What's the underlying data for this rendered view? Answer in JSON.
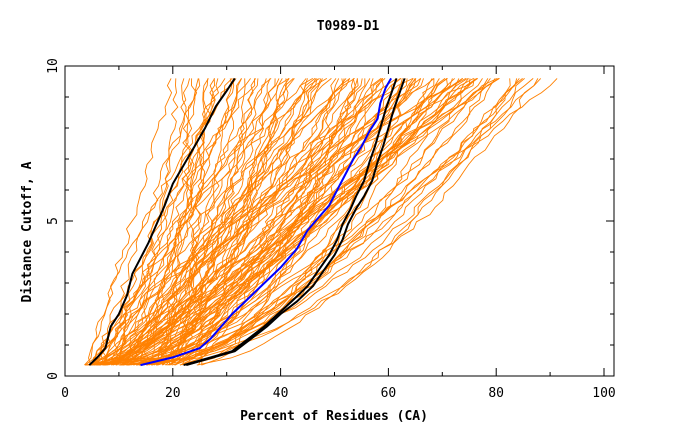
{
  "chart_data": {
    "type": "line",
    "title": "T0989-D1",
    "xlabel": "Percent of Residues (CA)",
    "ylabel": "Distance Cutoff, A",
    "xlim": [
      0,
      102
    ],
    "ylim": [
      0,
      10
    ],
    "xticks": [
      0,
      20,
      40,
      60,
      80,
      100
    ],
    "yticks": [
      0,
      5,
      10
    ],
    "grid": false,
    "colors": {
      "background": "#cc7a1a",
      "highlight_black": "#000000",
      "highlight_blue": "#0000ff"
    },
    "background_series": {
      "note_color": "#ff8000",
      "count": 120,
      "start_range": [
        4,
        26
      ],
      "end_range": [
        20,
        92
      ]
    },
    "series": [
      {
        "color": "#000000",
        "points": [
          [
            4.5,
            0.35
          ],
          [
            6,
            0.6
          ],
          [
            7.5,
            0.9
          ],
          [
            8.5,
            1.6
          ],
          [
            10,
            2.0
          ],
          [
            11.5,
            2.6
          ],
          [
            12.5,
            3.3
          ],
          [
            14,
            3.8
          ],
          [
            15.5,
            4.3
          ],
          [
            17,
            4.9
          ],
          [
            18.5,
            5.5
          ],
          [
            20,
            6.2
          ],
          [
            22,
            6.8
          ],
          [
            24,
            7.4
          ],
          [
            26,
            8.0
          ],
          [
            28,
            8.7
          ],
          [
            30,
            9.2
          ],
          [
            31.5,
            9.6
          ]
        ]
      },
      {
        "color": "#0000ff",
        "points": [
          [
            14,
            0.35
          ],
          [
            20,
            0.6
          ],
          [
            25,
            0.9
          ],
          [
            27,
            1.2
          ],
          [
            29,
            1.6
          ],
          [
            31,
            2.0
          ],
          [
            34,
            2.5
          ],
          [
            37,
            3.0
          ],
          [
            40,
            3.5
          ],
          [
            43,
            4.1
          ],
          [
            45,
            4.7
          ],
          [
            47,
            5.1
          ],
          [
            49,
            5.5
          ],
          [
            50.5,
            6.0
          ],
          [
            52,
            6.5
          ],
          [
            53.5,
            7.0
          ],
          [
            55,
            7.4
          ],
          [
            56.5,
            7.9
          ],
          [
            58,
            8.3
          ],
          [
            58.5,
            8.8
          ],
          [
            59.5,
            9.3
          ],
          [
            60.5,
            9.6
          ]
        ]
      },
      {
        "color": "#000000",
        "points": [
          [
            22,
            0.35
          ],
          [
            27,
            0.6
          ],
          [
            31,
            0.8
          ],
          [
            34,
            1.2
          ],
          [
            37,
            1.6
          ],
          [
            39.5,
            2.0
          ],
          [
            42,
            2.4
          ],
          [
            45,
            2.9
          ],
          [
            47,
            3.4
          ],
          [
            49,
            3.9
          ],
          [
            50.5,
            4.4
          ],
          [
            51.5,
            4.9
          ],
          [
            53,
            5.4
          ],
          [
            54,
            5.8
          ],
          [
            55.5,
            6.3
          ],
          [
            56.5,
            6.9
          ],
          [
            57.5,
            7.4
          ],
          [
            58.5,
            8.0
          ],
          [
            59.5,
            8.6
          ],
          [
            60.5,
            9.1
          ],
          [
            61.5,
            9.6
          ]
        ]
      },
      {
        "color": "#000000",
        "points": [
          [
            22.5,
            0.35
          ],
          [
            27.5,
            0.6
          ],
          [
            31.5,
            0.8
          ],
          [
            34.5,
            1.2
          ],
          [
            37.5,
            1.6
          ],
          [
            40,
            2.0
          ],
          [
            43,
            2.4
          ],
          [
            46,
            2.9
          ],
          [
            48,
            3.4
          ],
          [
            50,
            3.9
          ],
          [
            51.5,
            4.4
          ],
          [
            52.5,
            4.9
          ],
          [
            54,
            5.4
          ],
          [
            55.5,
            5.8
          ],
          [
            57,
            6.3
          ],
          [
            58,
            6.9
          ],
          [
            59,
            7.4
          ],
          [
            60,
            8.0
          ],
          [
            61,
            8.6
          ],
          [
            62,
            9.1
          ],
          [
            63,
            9.6
          ]
        ]
      }
    ]
  }
}
